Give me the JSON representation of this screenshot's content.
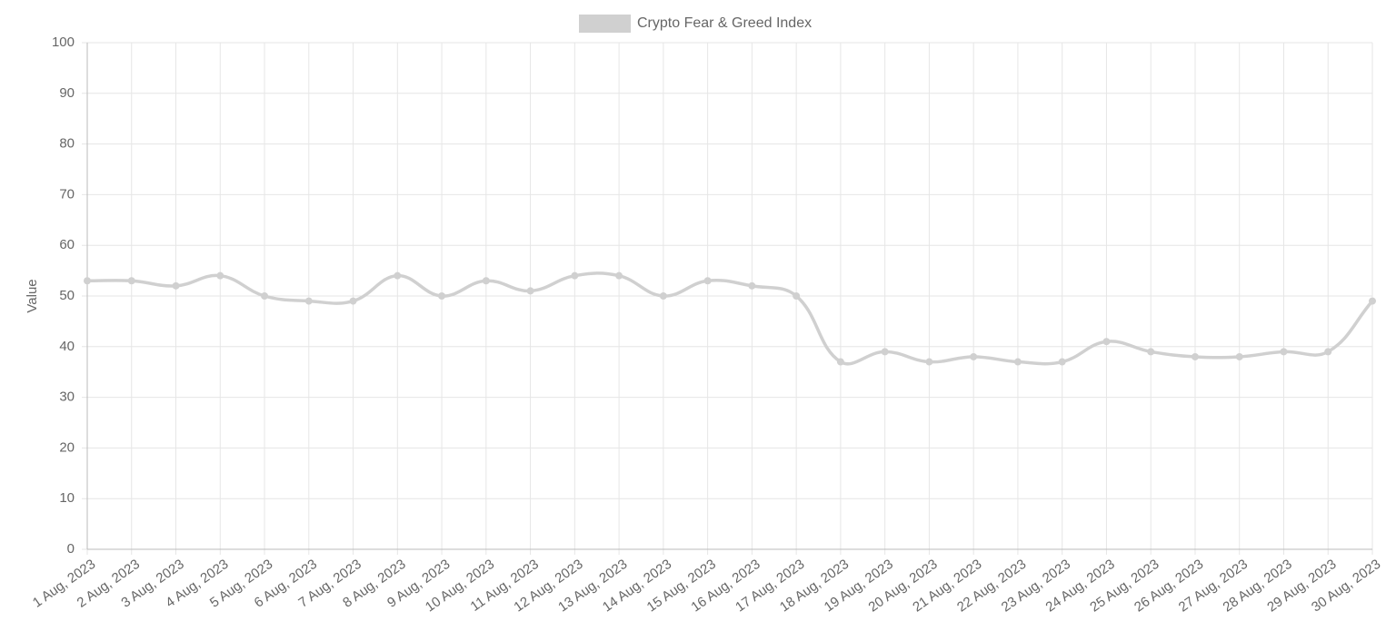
{
  "chart_data": {
    "type": "line",
    "y_label": "Value",
    "categories": [
      "1 Aug, 2023",
      "2 Aug, 2023",
      "3 Aug, 2023",
      "4 Aug, 2023",
      "5 Aug, 2023",
      "6 Aug, 2023",
      "7 Aug, 2023",
      "8 Aug, 2023",
      "9 Aug, 2023",
      "10 Aug, 2023",
      "11 Aug, 2023",
      "12 Aug, 2023",
      "13 Aug, 2023",
      "14 Aug, 2023",
      "15 Aug, 2023",
      "16 Aug, 2023",
      "17 Aug, 2023",
      "18 Aug, 2023",
      "19 Aug, 2023",
      "20 Aug, 2023",
      "21 Aug, 2023",
      "22 Aug, 2023",
      "23 Aug, 2023",
      "24 Aug, 2023",
      "25 Aug, 2023",
      "26 Aug, 2023",
      "27 Aug, 2023",
      "28 Aug, 2023",
      "29 Aug, 2023",
      "30 Aug, 2023"
    ],
    "series": [
      {
        "name": "Crypto Fear & Greed Index",
        "color": "#d0d0d0",
        "values": [
          53,
          53,
          52,
          54,
          50,
          49,
          49,
          54,
          50,
          53,
          51,
          54,
          54,
          50,
          53,
          52,
          50,
          37,
          39,
          37,
          38,
          37,
          37,
          41,
          39,
          38,
          38,
          39,
          39,
          49
        ]
      }
    ],
    "ylim": [
      0,
      100
    ],
    "yticks": [
      0,
      10,
      20,
      30,
      40,
      50,
      60,
      70,
      80,
      90,
      100
    ],
    "grid": true,
    "legend": "top"
  }
}
